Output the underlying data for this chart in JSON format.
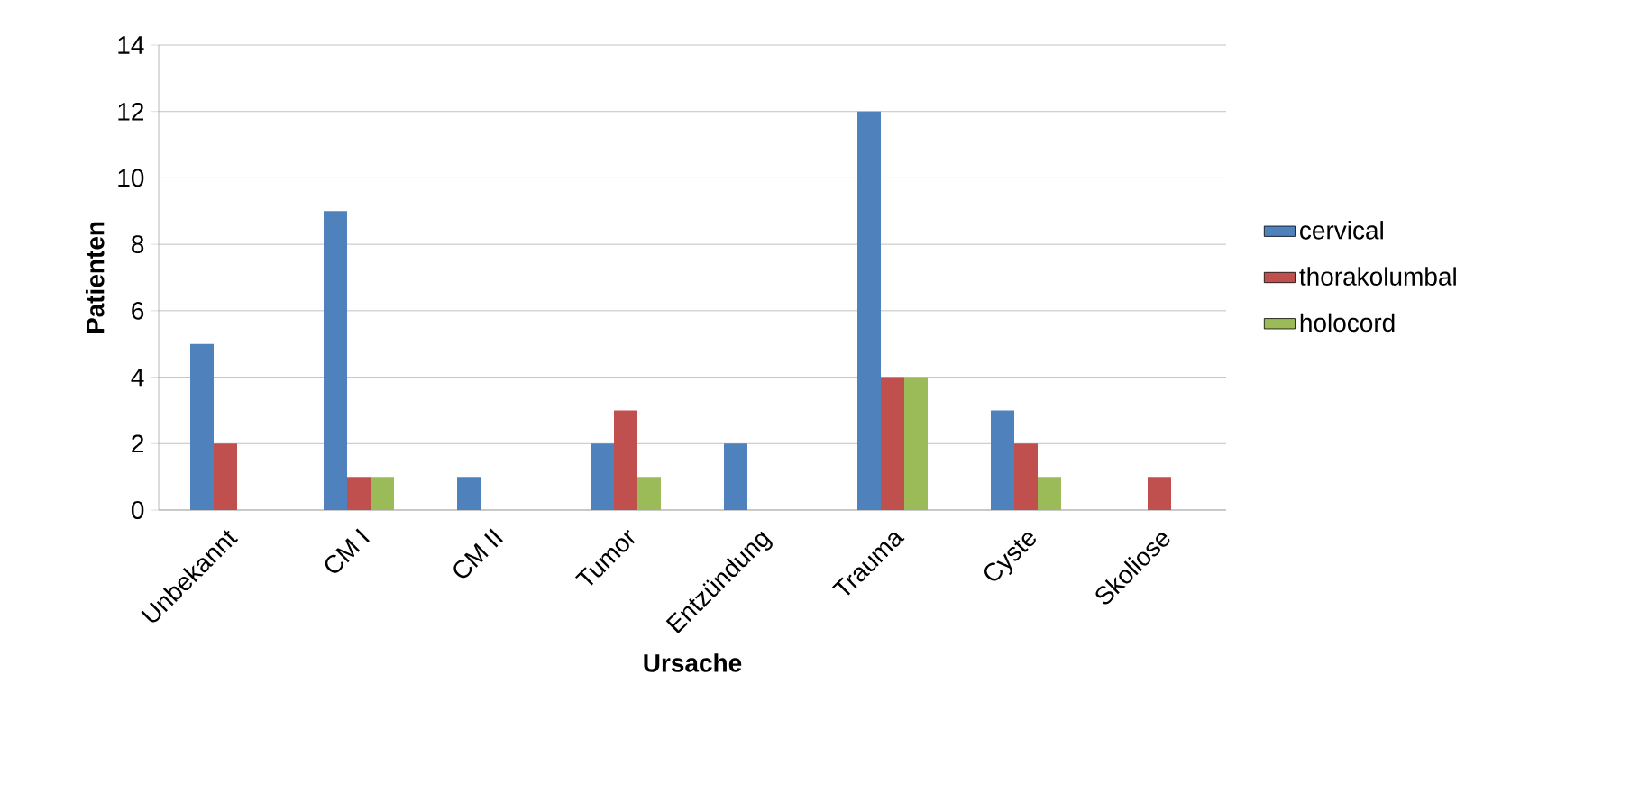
{
  "chart_data": {
    "type": "bar",
    "xlabel": "Ursache",
    "ylabel": "Patienten",
    "categories": [
      "Unbekannt",
      "CM I",
      "CM II",
      "Tumor",
      "Entzündung",
      "Trauma",
      "Cyste",
      "Skoliose"
    ],
    "series": [
      {
        "name": "cervical",
        "color": "#4f81bd",
        "values": [
          5,
          9,
          1,
          2,
          2,
          12,
          3,
          0
        ]
      },
      {
        "name": "thorakolumbal",
        "color": "#c0504d",
        "values": [
          2,
          1,
          0,
          3,
          0,
          4,
          2,
          1
        ]
      },
      {
        "name": "holocord",
        "color": "#9bbb59",
        "values": [
          0,
          1,
          0,
          1,
          0,
          4,
          1,
          0
        ]
      }
    ],
    "ylim": [
      0,
      14
    ],
    "yticks": [
      0,
      2,
      4,
      6,
      8,
      10,
      12,
      14
    ],
    "grid": "y",
    "legend": "right"
  }
}
